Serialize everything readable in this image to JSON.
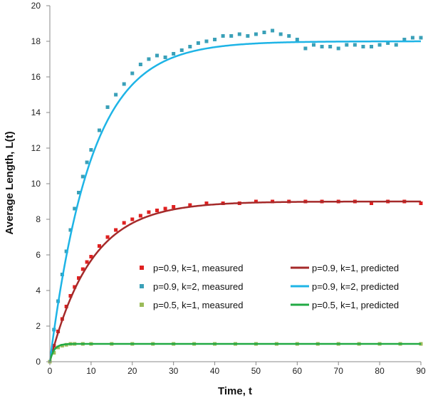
{
  "chart_data": {
    "type": "scatter",
    "xlabel": "Time, t",
    "ylabel": "Average Length, L(t)",
    "xlim": [
      0,
      90
    ],
    "ylim": [
      0,
      20
    ],
    "x_ticks": [
      0,
      10,
      20,
      30,
      40,
      50,
      60,
      70,
      80,
      90
    ],
    "y_ticks": [
      0,
      2,
      4,
      6,
      8,
      10,
      12,
      14,
      16,
      18,
      20
    ],
    "grid": false,
    "legend_position": "center-right, two columns",
    "series": [
      {
        "name": "p=0.9, k=1, measured",
        "kind": "markers",
        "color": "#e02020",
        "x": [
          0,
          1,
          2,
          3,
          4,
          5,
          6,
          7,
          8,
          9,
          10,
          12,
          14,
          16,
          18,
          20,
          22,
          24,
          26,
          28,
          30,
          34,
          38,
          42,
          46,
          50,
          54,
          58,
          62,
          66,
          70,
          74,
          78,
          82,
          86,
          90
        ],
        "y": [
          0,
          0.9,
          1.7,
          2.4,
          3.1,
          3.7,
          4.2,
          4.7,
          5.2,
          5.6,
          5.9,
          6.5,
          7.0,
          7.4,
          7.8,
          8.0,
          8.2,
          8.4,
          8.5,
          8.6,
          8.7,
          8.8,
          8.9,
          8.9,
          8.9,
          9.0,
          9.0,
          9.0,
          9.0,
          9.0,
          9.0,
          9.0,
          8.9,
          9.0,
          9.0,
          8.9
        ]
      },
      {
        "name": "p=0.9, k=2, measured",
        "kind": "markers",
        "color": "#3aa0b8",
        "x": [
          0,
          1,
          2,
          3,
          4,
          5,
          6,
          7,
          8,
          9,
          10,
          12,
          14,
          16,
          18,
          20,
          22,
          24,
          26,
          28,
          30,
          32,
          34,
          36,
          38,
          40,
          42,
          44,
          46,
          48,
          50,
          52,
          54,
          56,
          58,
          60,
          62,
          64,
          66,
          68,
          70,
          72,
          74,
          76,
          78,
          80,
          82,
          84,
          86,
          88,
          90
        ],
        "y": [
          0,
          1.8,
          3.4,
          4.9,
          6.2,
          7.4,
          8.6,
          9.5,
          10.4,
          11.2,
          11.9,
          13.0,
          14.3,
          15.0,
          15.6,
          16.2,
          16.7,
          17.0,
          17.2,
          17.1,
          17.3,
          17.5,
          17.7,
          17.9,
          18.0,
          18.1,
          18.3,
          18.3,
          18.4,
          18.3,
          18.4,
          18.5,
          18.6,
          18.4,
          18.3,
          18.1,
          17.6,
          17.8,
          17.7,
          17.7,
          17.6,
          17.8,
          17.8,
          17.7,
          17.7,
          17.8,
          17.9,
          17.8,
          18.1,
          18.2,
          18.2
        ]
      },
      {
        "name": "p=0.5, k=1, measured",
        "kind": "markers",
        "color": "#9bbb59",
        "x": [
          0,
          1,
          2,
          3,
          4,
          5,
          6,
          8,
          10,
          15,
          20,
          25,
          30,
          35,
          40,
          45,
          50,
          55,
          60,
          65,
          70,
          75,
          80,
          85,
          90
        ],
        "y": [
          0,
          0.5,
          0.8,
          0.9,
          0.95,
          1.0,
          1.0,
          1.0,
          1.0,
          1.0,
          1.0,
          1.0,
          1.0,
          1.0,
          1.0,
          1.0,
          1.0,
          1.0,
          1.0,
          1.0,
          1.0,
          1.0,
          1.0,
          1.0,
          1.0
        ]
      },
      {
        "name": "p=0.9, k=1, predicted",
        "kind": "line",
        "color": "#a52a2a",
        "asymptote": 9,
        "rate": 0.1
      },
      {
        "name": "p=0.9, k=2, predicted",
        "kind": "line",
        "color": "#1eb4e6",
        "asymptote": 18,
        "rate": 0.1
      },
      {
        "name": "p=0.5, k=1, predicted",
        "kind": "line",
        "color": "#22aa44",
        "asymptote": 1,
        "rate": 1.0
      }
    ]
  }
}
